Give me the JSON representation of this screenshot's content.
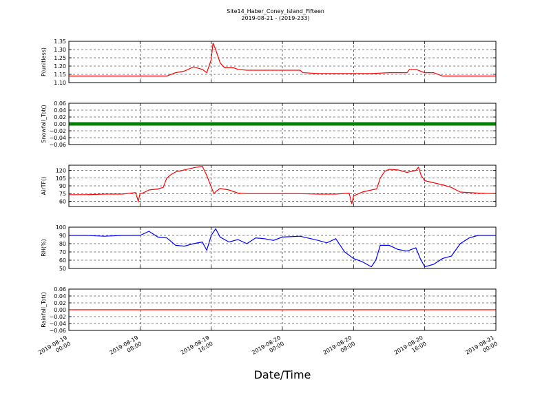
{
  "figure": {
    "title": "Site14_Haber_Coney_Island_Fifteen",
    "subtitle": "2019-08-21 - (2019-233)",
    "xlabel": "Date/Time",
    "x_ticks": [
      "2019-08-19\n00:00",
      "2019-08-19\n08:00",
      "2019-08-19\n16:00",
      "2019-08-20\n00:00",
      "2019-08-20\n08:00",
      "2019-08-20\n16:00",
      "2019-08-21\n00:00"
    ],
    "x_range_hours": [
      0,
      48
    ]
  },
  "chart_data": [
    {
      "type": "line",
      "ylabel": "P(unitless)",
      "color": "#ff0000",
      "ylim": [
        1.1,
        1.35
      ],
      "y_ticks": [
        "1.10",
        "1.15",
        "1.20",
        "1.25",
        "1.30",
        "1.35"
      ],
      "y_tick_values": [
        1.1,
        1.15,
        1.2,
        1.25,
        1.3,
        1.35
      ],
      "grid": true,
      "x": [
        0,
        2,
        4,
        6,
        8,
        10,
        11,
        12,
        13,
        14,
        15,
        15.5,
        16,
        16.2,
        16.5,
        17,
        17.5,
        18,
        18.5,
        19,
        20,
        22,
        24,
        26,
        26.3,
        28,
        30,
        32,
        34,
        36,
        38,
        38.3,
        39,
        40,
        41,
        42,
        44,
        46,
        48
      ],
      "y": [
        1.14,
        1.14,
        1.14,
        1.14,
        1.14,
        1.14,
        1.14,
        1.16,
        1.17,
        1.195,
        1.18,
        1.16,
        1.24,
        1.34,
        1.3,
        1.22,
        1.19,
        1.19,
        1.19,
        1.18,
        1.175,
        1.175,
        1.175,
        1.175,
        1.16,
        1.155,
        1.155,
        1.155,
        1.155,
        1.16,
        1.16,
        1.18,
        1.18,
        1.16,
        1.16,
        1.14,
        1.14,
        1.14,
        1.14
      ]
    },
    {
      "type": "line",
      "ylabel": "Snowfall_Tot()",
      "color": "#008000",
      "ylim": [
        -0.06,
        0.06
      ],
      "y_ticks": [
        "−0.06",
        "−0.04",
        "−0.02",
        "0.00",
        "0.02",
        "0.04",
        "0.06"
      ],
      "y_tick_values": [
        -0.06,
        -0.04,
        -0.02,
        0.0,
        0.02,
        0.04,
        0.06
      ],
      "grid": true,
      "markers": true,
      "x": [
        0,
        48
      ],
      "y": [
        0,
        0
      ]
    },
    {
      "type": "line",
      "ylabel": "AirTF()",
      "color": "#ff0000",
      "ylim": [
        50,
        130
      ],
      "y_ticks": [
        "60",
        "75",
        "90",
        "105",
        "120"
      ],
      "y_tick_values": [
        60,
        75,
        90,
        105,
        120
      ],
      "grid": true,
      "x": [
        0,
        2,
        4,
        6,
        7.5,
        7.8,
        8,
        8.3,
        9,
        10,
        10.6,
        11,
        11.5,
        12,
        13,
        14,
        15,
        15.5,
        16,
        16.3,
        16.6,
        17,
        18,
        19,
        20,
        22,
        24,
        26,
        28,
        30,
        31.5,
        31.8,
        32,
        32.3,
        33,
        34,
        34.6,
        35,
        35.5,
        36,
        37,
        38,
        39,
        39.3,
        39.6,
        40,
        41,
        42,
        43,
        44,
        46,
        48
      ],
      "y": [
        73,
        73,
        74,
        74,
        77,
        60,
        75,
        76,
        82,
        84,
        87,
        105,
        112,
        117,
        121,
        125,
        128,
        110,
        88,
        75,
        80,
        85,
        82,
        76,
        75,
        75,
        75,
        75,
        74,
        74,
        76,
        55,
        70,
        73,
        78,
        82,
        84,
        105,
        118,
        122,
        121,
        116,
        120,
        126,
        110,
        100,
        96,
        92,
        87,
        78,
        76,
        75
      ]
    },
    {
      "type": "line",
      "ylabel": "RH(%)",
      "color": "#0000ff",
      "ylim": [
        50,
        100
      ],
      "y_ticks": [
        "50",
        "60",
        "70",
        "80",
        "90",
        "100"
      ],
      "y_tick_values": [
        50,
        60,
        70,
        80,
        90,
        100
      ],
      "grid": true,
      "x": [
        0,
        2,
        4,
        6,
        8,
        9,
        10,
        11,
        12,
        13,
        14,
        15,
        15.5,
        16,
        16.5,
        17,
        18,
        19,
        20,
        21,
        22,
        23,
        24,
        26,
        28,
        29,
        30,
        31,
        32,
        33,
        34,
        34.5,
        35,
        36,
        37,
        38,
        39,
        39.5,
        40,
        41,
        42,
        43,
        44,
        45,
        46,
        48
      ],
      "y": [
        90,
        90,
        89,
        90,
        90,
        95,
        88,
        87,
        78,
        77,
        80,
        82,
        72,
        90,
        98,
        88,
        82,
        85,
        80,
        87,
        86,
        84,
        88,
        89,
        84,
        81,
        86,
        70,
        62,
        58,
        52,
        60,
        78,
        78,
        73,
        71,
        75,
        62,
        52,
        55,
        62,
        65,
        80,
        87,
        90,
        90
      ]
    },
    {
      "type": "line",
      "ylabel": "Rainfall_Tot()",
      "color": "#ff0000",
      "ylim": [
        -0.06,
        0.06
      ],
      "y_ticks": [
        "−0.06",
        "−0.04",
        "−0.02",
        "0.00",
        "0.02",
        "0.04",
        "0.06"
      ],
      "y_tick_values": [
        -0.06,
        -0.04,
        -0.02,
        0.0,
        0.02,
        0.04,
        0.06
      ],
      "grid": true,
      "x": [
        0,
        48
      ],
      "y": [
        0,
        0
      ]
    }
  ]
}
